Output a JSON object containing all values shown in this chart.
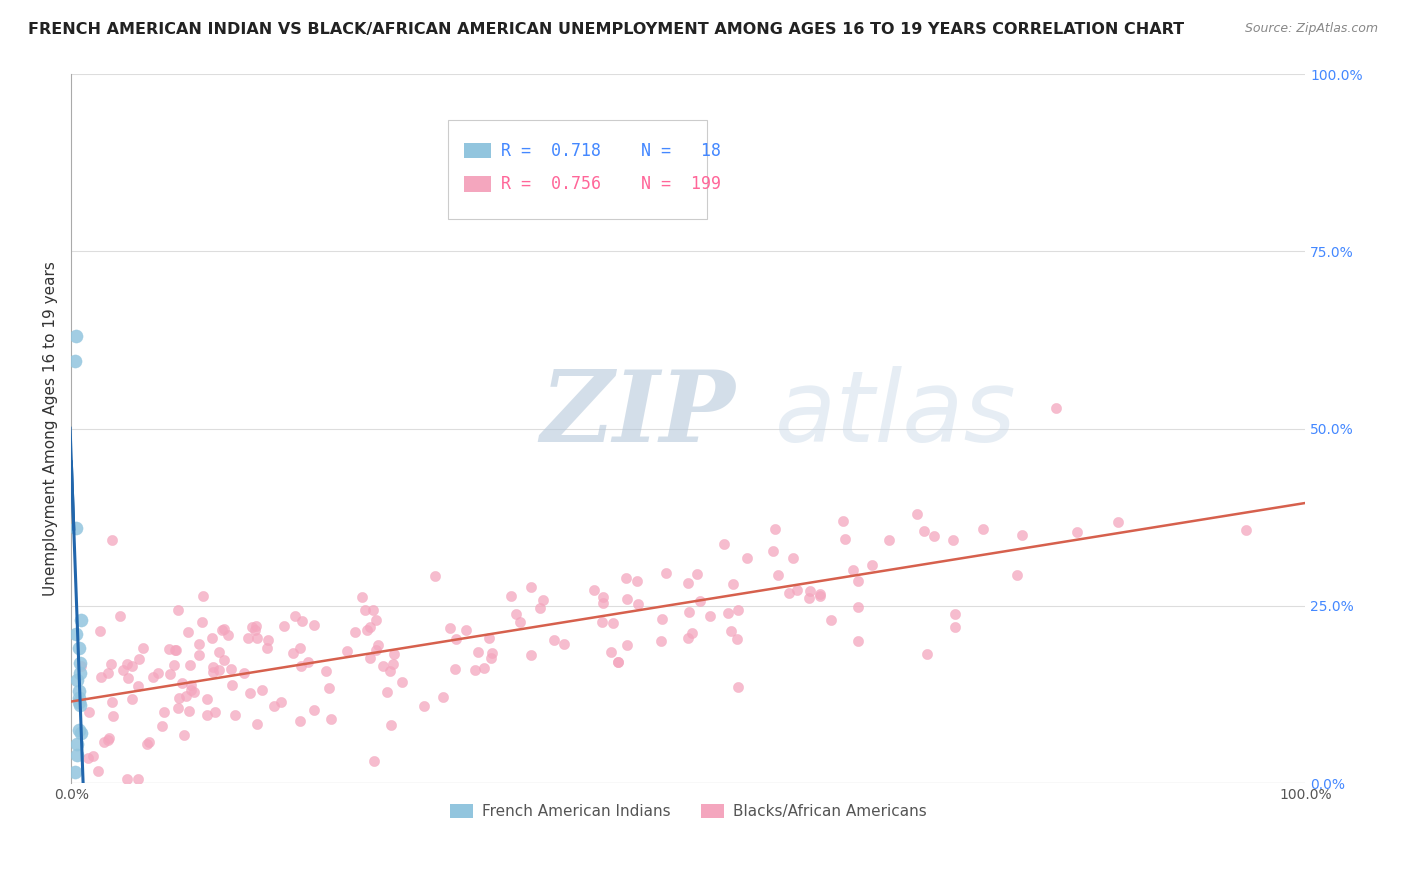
{
  "title": "FRENCH AMERICAN INDIAN VS BLACK/AFRICAN AMERICAN UNEMPLOYMENT AMONG AGES 16 TO 19 YEARS CORRELATION CHART",
  "source": "Source: ZipAtlas.com",
  "ylabel": "Unemployment Among Ages 16 to 19 years",
  "xlim": [
    0.0,
    1.0
  ],
  "ylim": [
    0.0,
    1.0
  ],
  "xticks": [
    0.0,
    1.0
  ],
  "xticklabels": [
    "0.0%",
    "100.0%"
  ],
  "yticks": [
    0.0,
    0.25,
    0.5,
    0.75,
    1.0
  ],
  "yticklabels_right": [
    "0.0%",
    "25.0%",
    "50.0%",
    "75.0%",
    "100.0%"
  ],
  "blue_R": 0.718,
  "blue_N": 18,
  "pink_R": 0.756,
  "pink_N": 199,
  "blue_color": "#92c5de",
  "pink_color": "#f4a6be",
  "blue_line_color": "#2166ac",
  "pink_line_color": "#d6604d",
  "watermark_zip": "ZIP",
  "watermark_atlas": "atlas",
  "legend_label_blue": "French American Indians",
  "legend_label_pink": "Blacks/African Americans",
  "blue_scatter_x": [
    0.003,
    0.005,
    0.004,
    0.007,
    0.006,
    0.005,
    0.006,
    0.007,
    0.008,
    0.005,
    0.006,
    0.006,
    0.004,
    0.008,
    0.007,
    0.004,
    0.006,
    0.003
  ],
  "blue_scatter_y": [
    0.595,
    0.04,
    0.36,
    0.11,
    0.13,
    0.145,
    0.12,
    0.17,
    0.07,
    0.055,
    0.075,
    0.19,
    0.21,
    0.23,
    0.155,
    0.63,
    0.115,
    0.015
  ],
  "background_color": "#ffffff",
  "grid_color": "#dddddd",
  "title_fontsize": 11.5,
  "axis_label_fontsize": 11,
  "tick_fontsize": 10,
  "legend_fontsize": 11,
  "right_tick_color": "#4488ff",
  "pink_line_slope": 0.28,
  "pink_line_intercept": 0.115
}
